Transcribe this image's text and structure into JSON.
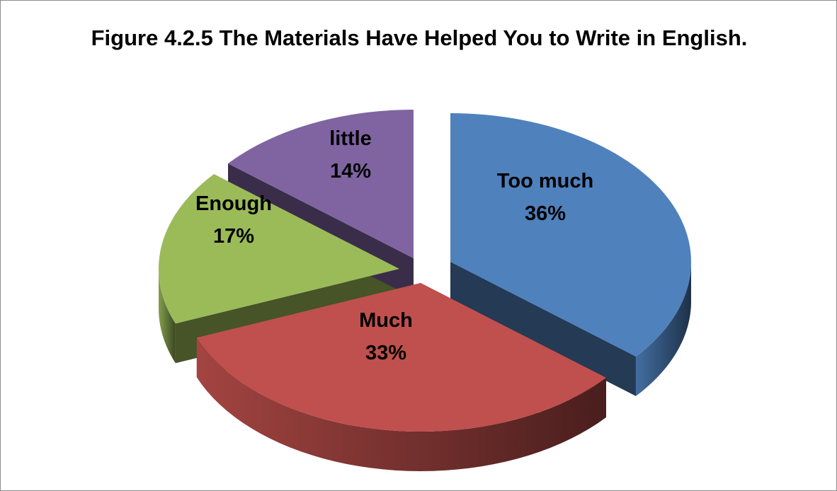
{
  "chart_data": {
    "type": "pie",
    "title": "Figure 4.2.5 The Materials Have Helped You to Write in English.",
    "slices": [
      {
        "label": "Too much",
        "value": 36,
        "percent_label": "36%",
        "color": "#4f81bd"
      },
      {
        "label": "Much",
        "value": 33,
        "percent_label": "33%",
        "color": "#c0504d"
      },
      {
        "label": "Enough",
        "value": 17,
        "percent_label": "17%",
        "color": "#9bbb59"
      },
      {
        "label": "little",
        "value": 14,
        "percent_label": "14%",
        "color": "#8064a2"
      }
    ],
    "style": "3d-exploded",
    "legend": "none"
  }
}
